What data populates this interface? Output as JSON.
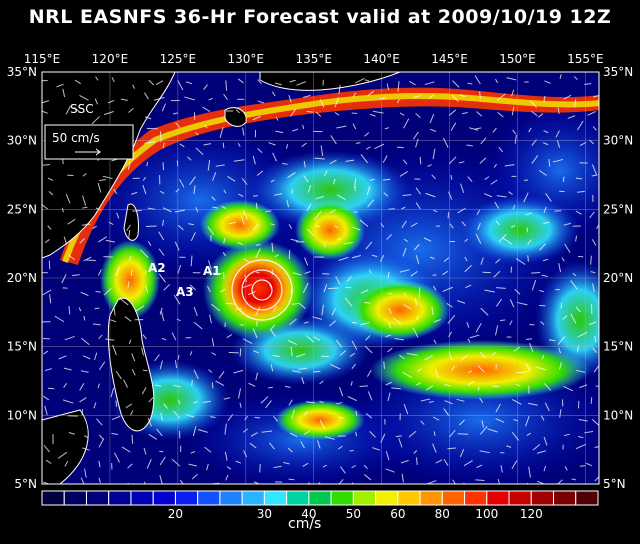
{
  "title": "NRL EASNFS  36-Hr Forecast valid at 2009/10/19 12Z",
  "map": {
    "lon_labels": [
      "115°E",
      "120°E",
      "125°E",
      "130°E",
      "135°E",
      "140°E",
      "145°E",
      "150°E",
      "155°E"
    ],
    "lat_labels_left": [
      "35°N",
      "30°N",
      "25°N",
      "20°N",
      "15°N",
      "10°N",
      "5°N"
    ],
    "lat_labels_right": [
      "35°N",
      "30°N",
      "25°N",
      "20°N",
      "15°N",
      "10°N",
      "5°N"
    ],
    "lon_range": [
      115,
      156
    ],
    "lat_range": [
      5,
      35
    ],
    "field_label": "SSC",
    "scale_vector_label": "50 cm/s",
    "feature_labels": [
      "A2",
      "A1",
      "A3"
    ],
    "colors": {
      "background": "#000000",
      "ocean_low": "#000060",
      "land_outline": "#ffffff"
    }
  },
  "colorbar": {
    "tick_labels": [
      "20",
      "30",
      "40",
      "50",
      "60",
      "80",
      "100",
      "120"
    ],
    "unit": "cm/s",
    "colors": [
      "#000040",
      "#000060",
      "#00007a",
      "#000096",
      "#0000b4",
      "#0000d2",
      "#0a1ef0",
      "#1450ff",
      "#1e82ff",
      "#28b4ff",
      "#32e6ff",
      "#00d2a0",
      "#00c850",
      "#32dc00",
      "#a0f000",
      "#f0f000",
      "#ffc800",
      "#ff9600",
      "#ff6400",
      "#ff3200",
      "#e60000",
      "#c80000",
      "#a00000",
      "#780000",
      "#500000"
    ]
  }
}
